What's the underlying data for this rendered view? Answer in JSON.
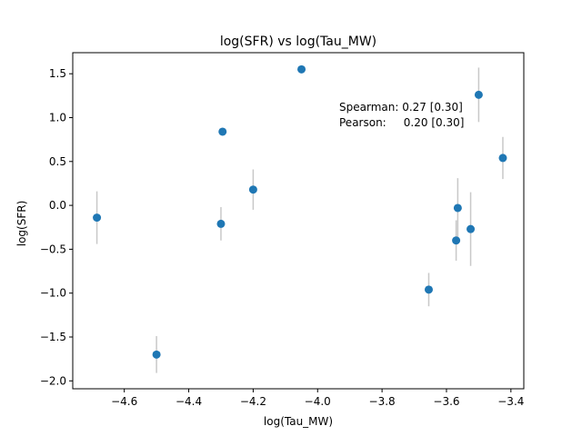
{
  "chart_data": {
    "type": "scatter",
    "title": "log(SFR) vs log(Tau_MW)",
    "xlabel": "log(Tau_MW)",
    "ylabel": "log(SFR)",
    "xlim": [
      -4.76,
      -3.36
    ],
    "ylim": [
      -2.09,
      1.74
    ],
    "xticks": [
      -4.6,
      -4.4,
      -4.2,
      -4.0,
      -3.8,
      -3.6,
      -3.4
    ],
    "xtick_labels": [
      "−4.6",
      "−4.4",
      "−4.2",
      "−4.0",
      "−3.8",
      "−3.6",
      "−3.4"
    ],
    "yticks": [
      -2.0,
      -1.5,
      -1.0,
      -0.5,
      0.0,
      0.5,
      1.0,
      1.5
    ],
    "ytick_labels": [
      "−2.0",
      "−1.5",
      "−1.0",
      "−0.5",
      "0.0",
      "0.5",
      "1.0",
      "1.5"
    ],
    "grid": false,
    "marker_color": "#1f77b4",
    "errorbar_color": "#c8c8c8",
    "points": [
      {
        "x": -4.685,
        "y": -0.14,
        "err": 0.3
      },
      {
        "x": -4.5,
        "y": -1.7,
        "err": 0.21
      },
      {
        "x": -4.3,
        "y": -0.21,
        "err": 0.19
      },
      {
        "x": -4.295,
        "y": 0.84,
        "err": 0
      },
      {
        "x": -4.2,
        "y": 0.18,
        "err": 0.23
      },
      {
        "x": -4.05,
        "y": 1.55,
        "err": 0
      },
      {
        "x": -3.655,
        "y": -0.96,
        "err": 0.19
      },
      {
        "x": -3.57,
        "y": -0.4,
        "err": 0.23
      },
      {
        "x": -3.565,
        "y": -0.03,
        "err": 0.34
      },
      {
        "x": -3.525,
        "y": -0.27,
        "err": 0.42
      },
      {
        "x": -3.5,
        "y": 1.26,
        "err": 0.31
      },
      {
        "x": -3.425,
        "y": 0.54,
        "err": 0.24
      }
    ],
    "annotations": [
      "Spearman: 0.27 [0.30]",
      "Pearson:     0.20 [0.30]"
    ]
  }
}
